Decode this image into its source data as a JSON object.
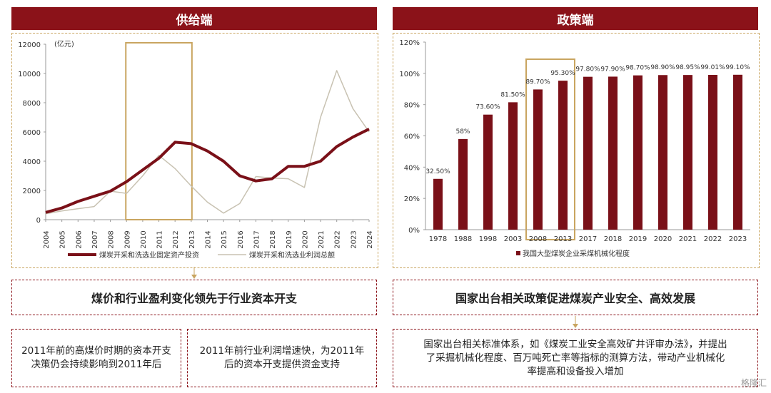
{
  "left_header": "供给端",
  "right_header": "政策端",
  "left_summary": "煤价和行业盈利变化领先于行业资本开支",
  "left_note1": "2011年前的高煤价时期的资本开支决策仍会持续影响到2011年后",
  "left_note2": "2011年前行业利润增速快，为2011年后的资本开支提供资金支持",
  "right_summary": "国家出台相关政策促进煤炭产业安全、高效发展",
  "right_note": "国家出台相关标准体系，如《煤炭工业安全高效矿井评审办法》，并提出了采掘机械化程度、百万吨死亡率等指标的测算方法，带动产业机械化率提高和设备投入增加",
  "watermark": "格隆汇",
  "chart_data": [
    {
      "type": "line",
      "unit_label": "(亿元)",
      "x": [
        "2004",
        "2005",
        "2006",
        "2007",
        "2008",
        "2009",
        "2010",
        "2011",
        "2012",
        "2013",
        "2014",
        "2015",
        "2016",
        "2017",
        "2018",
        "2019",
        "2020",
        "2021",
        "2022",
        "2023",
        "2024"
      ],
      "ylim": [
        0,
        12000
      ],
      "yticks": [
        0,
        2000,
        4000,
        6000,
        8000,
        10000,
        12000
      ],
      "highlight": [
        "2009",
        "2013"
      ],
      "series": [
        {
          "name": "煤炭开采和洗选业固定资产投资",
          "color": "#7a1018",
          "values": [
            500,
            800,
            1250,
            1600,
            1950,
            2600,
            3400,
            4200,
            5300,
            5200,
            4700,
            4000,
            3000,
            2650,
            2800,
            3650,
            3650,
            4000,
            5000,
            5650,
            6200
          ]
        },
        {
          "name": "煤炭开采和洗选业利润总额",
          "color": "#c8c2b2",
          "values": [
            400,
            600,
            750,
            900,
            1950,
            1800,
            3000,
            4400,
            3500,
            2300,
            1200,
            450,
            1100,
            2950,
            2850,
            2800,
            2200,
            7000,
            10200,
            7600,
            6000
          ]
        }
      ]
    },
    {
      "type": "bar",
      "categories": [
        "1978",
        "1988",
        "1998",
        "2003",
        "2008",
        "2013",
        "2017",
        "2018",
        "2019",
        "2020",
        "2021",
        "2022",
        "2023"
      ],
      "ylim": [
        0,
        120
      ],
      "yticks": [
        "0%",
        "20%",
        "40%",
        "60%",
        "80%",
        "100%",
        "120%"
      ],
      "highlight": [
        "2008",
        "2013"
      ],
      "series": [
        {
          "name": "我国大型煤炭企业采煤机械化程度",
          "color": "#7a1018",
          "values": [
            32.5,
            58,
            73.6,
            81.5,
            89.7,
            95.3,
            97.8,
            97.9,
            98.7,
            98.9,
            98.95,
            99.01,
            99.1
          ],
          "labels": [
            "32.50%",
            "58%",
            "73.60%",
            "81.50%",
            "89.70%",
            "95.30%",
            "97.80%",
            "97.90%",
            "98.70%",
            "98.90%",
            "98.95%",
            "99.01%",
            "99.10%"
          ]
        }
      ]
    }
  ]
}
